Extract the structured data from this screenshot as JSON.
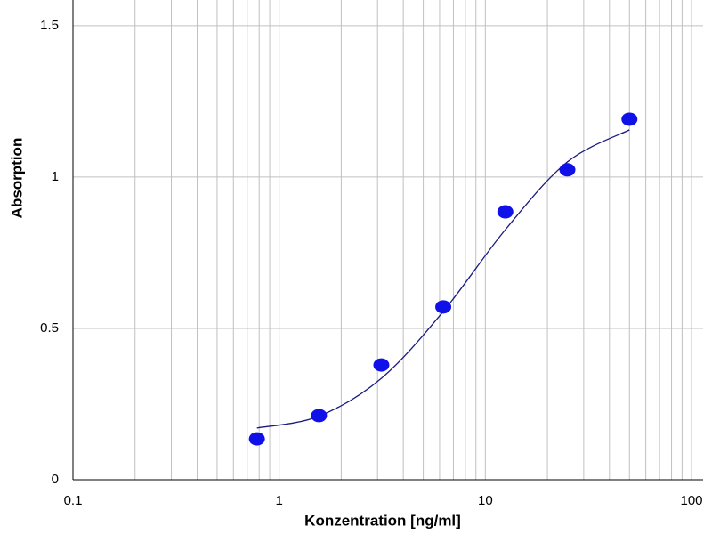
{
  "chart_data": {
    "type": "scatter",
    "x_label": "Konzentration [ng/ml]",
    "y_label": "Absorption",
    "xlog": true,
    "xlim": [
      0.1,
      100
    ],
    "xticks": [
      0.1,
      1,
      10,
      100
    ],
    "ylim": [
      0,
      1.585
    ],
    "yticks": [
      0,
      0.5,
      1,
      1.5
    ],
    "grid": true,
    "minor_grid": true,
    "series": [
      {
        "kind": "points",
        "color": "#1010e8",
        "x": [
          0.78,
          1.56,
          3.13,
          6.25,
          12.5,
          25,
          50
        ],
        "values": [
          0.135,
          0.212,
          0.379,
          0.571,
          0.885,
          1.024,
          1.191
        ]
      },
      {
        "kind": "fit",
        "color": "#1a1a80",
        "x": [
          0.78,
          1.56,
          3.13,
          6.25,
          12.5,
          25,
          50
        ],
        "values": [
          0.171,
          0.21,
          0.335,
          0.556,
          0.826,
          1.05,
          1.156
        ]
      }
    ]
  }
}
